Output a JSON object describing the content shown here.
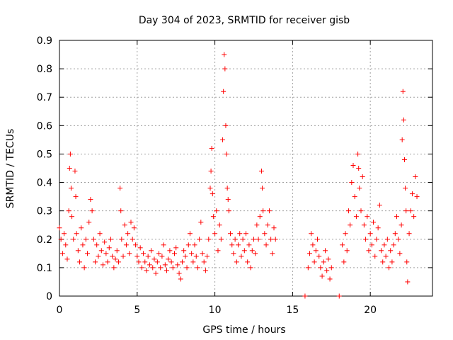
{
  "chart_data": {
    "type": "scatter",
    "title": "Day 304 of 2023, SRMTID for receiver gisb",
    "xlabel": "GPS time / hours",
    "ylabel": "SRMTID / TECUs",
    "xlim": [
      0,
      24
    ],
    "ylim": [
      0,
      0.9
    ],
    "xticks": [
      0,
      5,
      10,
      15,
      20
    ],
    "xtick_labels": [
      "0",
      "5",
      "10",
      "15",
      "20"
    ],
    "yticks": [
      0,
      0.1,
      0.2,
      0.3,
      0.4,
      0.5,
      0.6,
      0.7,
      0.8,
      0.9
    ],
    "ytick_labels": [
      "0",
      "0.1",
      "0.2",
      "0.3",
      "0.4",
      "0.5",
      "0.6",
      "0.7",
      "0.8",
      "0.9"
    ],
    "grid": true,
    "marker": "+",
    "color": "#ff0000",
    "series": [
      {
        "name": "SRMTID",
        "points": [
          [
            0.0,
            0.24
          ],
          [
            0.1,
            0.2
          ],
          [
            0.2,
            0.15
          ],
          [
            0.3,
            0.22
          ],
          [
            0.4,
            0.18
          ],
          [
            0.5,
            0.13
          ],
          [
            0.6,
            0.3
          ],
          [
            0.65,
            0.45
          ],
          [
            0.7,
            0.5
          ],
          [
            0.75,
            0.38
          ],
          [
            0.8,
            0.28
          ],
          [
            0.9,
            0.2
          ],
          [
            1.0,
            0.44
          ],
          [
            1.05,
            0.35
          ],
          [
            1.1,
            0.22
          ],
          [
            1.2,
            0.16
          ],
          [
            1.3,
            0.12
          ],
          [
            1.4,
            0.24
          ],
          [
            1.5,
            0.18
          ],
          [
            1.6,
            0.1
          ],
          [
            1.7,
            0.2
          ],
          [
            1.8,
            0.15
          ],
          [
            1.9,
            0.26
          ],
          [
            2.0,
            0.34
          ],
          [
            2.1,
            0.3
          ],
          [
            2.2,
            0.2
          ],
          [
            2.3,
            0.12
          ],
          [
            2.4,
            0.18
          ],
          [
            2.5,
            0.14
          ],
          [
            2.6,
            0.22
          ],
          [
            2.7,
            0.16
          ],
          [
            2.8,
            0.11
          ],
          [
            2.9,
            0.19
          ],
          [
            3.0,
            0.15
          ],
          [
            3.1,
            0.12
          ],
          [
            3.2,
            0.17
          ],
          [
            3.3,
            0.2
          ],
          [
            3.4,
            0.14
          ],
          [
            3.5,
            0.1
          ],
          [
            3.6,
            0.13
          ],
          [
            3.7,
            0.16
          ],
          [
            3.8,
            0.12
          ],
          [
            3.9,
            0.38
          ],
          [
            3.95,
            0.3
          ],
          [
            4.0,
            0.2
          ],
          [
            4.1,
            0.14
          ],
          [
            4.2,
            0.25
          ],
          [
            4.3,
            0.18
          ],
          [
            4.4,
            0.22
          ],
          [
            4.5,
            0.15
          ],
          [
            4.6,
            0.26
          ],
          [
            4.7,
            0.2
          ],
          [
            4.8,
            0.24
          ],
          [
            4.9,
            0.18
          ],
          [
            5.0,
            0.14
          ],
          [
            5.1,
            0.12
          ],
          [
            5.2,
            0.17
          ],
          [
            5.3,
            0.1
          ],
          [
            5.4,
            0.15
          ],
          [
            5.5,
            0.12
          ],
          [
            5.6,
            0.09
          ],
          [
            5.7,
            0.14
          ],
          [
            5.8,
            0.11
          ],
          [
            5.9,
            0.16
          ],
          [
            6.0,
            0.1
          ],
          [
            6.1,
            0.13
          ],
          [
            6.2,
            0.08
          ],
          [
            6.3,
            0.12
          ],
          [
            6.4,
            0.15
          ],
          [
            6.5,
            0.1
          ],
          [
            6.6,
            0.14
          ],
          [
            6.7,
            0.18
          ],
          [
            6.8,
            0.11
          ],
          [
            6.9,
            0.09
          ],
          [
            7.0,
            0.13
          ],
          [
            7.1,
            0.16
          ],
          [
            7.2,
            0.12
          ],
          [
            7.3,
            0.1
          ],
          [
            7.4,
            0.15
          ],
          [
            7.5,
            0.17
          ],
          [
            7.6,
            0.11
          ],
          [
            7.7,
            0.08
          ],
          [
            7.8,
            0.06
          ],
          [
            7.9,
            0.12
          ],
          [
            8.0,
            0.16
          ],
          [
            8.1,
            0.14
          ],
          [
            8.2,
            0.1
          ],
          [
            8.3,
            0.18
          ],
          [
            8.4,
            0.22
          ],
          [
            8.5,
            0.15
          ],
          [
            8.6,
            0.12
          ],
          [
            8.7,
            0.18
          ],
          [
            8.8,
            0.14
          ],
          [
            8.9,
            0.1
          ],
          [
            9.0,
            0.2
          ],
          [
            9.1,
            0.26
          ],
          [
            9.2,
            0.15
          ],
          [
            9.3,
            0.12
          ],
          [
            9.4,
            0.09
          ],
          [
            9.5,
            0.14
          ],
          [
            9.6,
            0.2
          ],
          [
            9.7,
            0.38
          ],
          [
            9.75,
            0.44
          ],
          [
            9.8,
            0.52
          ],
          [
            9.85,
            0.36
          ],
          [
            9.9,
            0.28
          ],
          [
            10.0,
            0.22
          ],
          [
            10.1,
            0.3
          ],
          [
            10.2,
            0.16
          ],
          [
            10.3,
            0.25
          ],
          [
            10.4,
            0.2
          ],
          [
            10.5,
            0.55
          ],
          [
            10.55,
            0.72
          ],
          [
            10.6,
            0.85
          ],
          [
            10.65,
            0.8
          ],
          [
            10.7,
            0.6
          ],
          [
            10.75,
            0.5
          ],
          [
            10.8,
            0.38
          ],
          [
            10.85,
            0.34
          ],
          [
            10.9,
            0.3
          ],
          [
            11.0,
            0.22
          ],
          [
            11.1,
            0.18
          ],
          [
            11.2,
            0.15
          ],
          [
            11.3,
            0.2
          ],
          [
            11.4,
            0.12
          ],
          [
            11.5,
            0.18
          ],
          [
            11.6,
            0.22
          ],
          [
            11.7,
            0.14
          ],
          [
            11.8,
            0.2
          ],
          [
            11.9,
            0.16
          ],
          [
            12.0,
            0.22
          ],
          [
            12.1,
            0.12
          ],
          [
            12.2,
            0.18
          ],
          [
            12.3,
            0.1
          ],
          [
            12.4,
            0.16
          ],
          [
            12.5,
            0.2
          ],
          [
            12.6,
            0.15
          ],
          [
            12.7,
            0.25
          ],
          [
            12.8,
            0.2
          ],
          [
            12.9,
            0.28
          ],
          [
            13.0,
            0.44
          ],
          [
            13.05,
            0.38
          ],
          [
            13.1,
            0.3
          ],
          [
            13.2,
            0.22
          ],
          [
            13.3,
            0.18
          ],
          [
            13.4,
            0.25
          ],
          [
            13.5,
            0.3
          ],
          [
            13.6,
            0.2
          ],
          [
            13.7,
            0.15
          ],
          [
            13.8,
            0.24
          ],
          [
            13.9,
            0.2
          ],
          [
            15.8,
            0.0
          ],
          [
            16.0,
            0.1
          ],
          [
            16.1,
            0.15
          ],
          [
            16.2,
            0.22
          ],
          [
            16.3,
            0.18
          ],
          [
            16.4,
            0.12
          ],
          [
            16.5,
            0.16
          ],
          [
            16.6,
            0.2
          ],
          [
            16.7,
            0.14
          ],
          [
            16.8,
            0.1
          ],
          [
            16.9,
            0.07
          ],
          [
            17.0,
            0.12
          ],
          [
            17.1,
            0.16
          ],
          [
            17.2,
            0.09
          ],
          [
            17.3,
            0.13
          ],
          [
            17.4,
            0.06
          ],
          [
            17.5,
            0.1
          ],
          [
            18.0,
            0.0
          ],
          [
            18.2,
            0.18
          ],
          [
            18.3,
            0.12
          ],
          [
            18.4,
            0.22
          ],
          [
            18.5,
            0.16
          ],
          [
            18.6,
            0.3
          ],
          [
            18.7,
            0.25
          ],
          [
            18.8,
            0.4
          ],
          [
            18.9,
            0.46
          ],
          [
            19.0,
            0.35
          ],
          [
            19.1,
            0.28
          ],
          [
            19.2,
            0.5
          ],
          [
            19.25,
            0.45
          ],
          [
            19.3,
            0.38
          ],
          [
            19.4,
            0.3
          ],
          [
            19.5,
            0.42
          ],
          [
            19.6,
            0.25
          ],
          [
            19.7,
            0.2
          ],
          [
            19.8,
            0.28
          ],
          [
            19.9,
            0.16
          ],
          [
            20.0,
            0.22
          ],
          [
            20.1,
            0.18
          ],
          [
            20.2,
            0.26
          ],
          [
            20.3,
            0.14
          ],
          [
            20.4,
            0.2
          ],
          [
            20.5,
            0.24
          ],
          [
            20.6,
            0.32
          ],
          [
            20.7,
            0.16
          ],
          [
            20.8,
            0.12
          ],
          [
            20.9,
            0.18
          ],
          [
            21.0,
            0.14
          ],
          [
            21.1,
            0.2
          ],
          [
            21.2,
            0.1
          ],
          [
            21.3,
            0.16
          ],
          [
            21.4,
            0.12
          ],
          [
            21.5,
            0.18
          ],
          [
            21.6,
            0.22
          ],
          [
            21.7,
            0.28
          ],
          [
            21.8,
            0.2
          ],
          [
            21.9,
            0.15
          ],
          [
            22.0,
            0.25
          ],
          [
            22.05,
            0.55
          ],
          [
            22.1,
            0.72
          ],
          [
            22.15,
            0.62
          ],
          [
            22.2,
            0.48
          ],
          [
            22.25,
            0.38
          ],
          [
            22.3,
            0.3
          ],
          [
            22.35,
            0.12
          ],
          [
            22.4,
            0.05
          ],
          [
            22.5,
            0.22
          ],
          [
            22.6,
            0.3
          ],
          [
            22.7,
            0.36
          ],
          [
            22.8,
            0.28
          ],
          [
            22.9,
            0.42
          ],
          [
            23.0,
            0.35
          ]
        ]
      }
    ]
  }
}
